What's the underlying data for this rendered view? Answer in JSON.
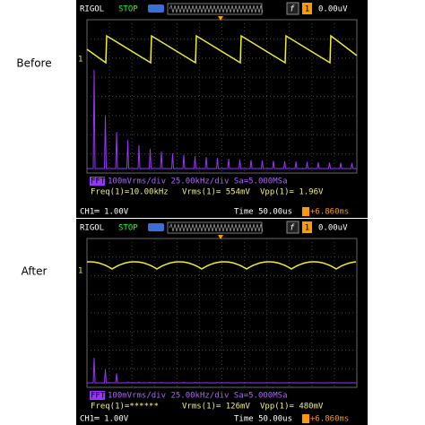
{
  "labels": [
    "Before",
    "After"
  ],
  "screens": [
    {
      "header": {
        "brand": "RIGOL",
        "status": "STOP",
        "channel": "1",
        "trigger_level": "0.00uV"
      },
      "fft": {
        "tag": "FFT",
        "settings": "100mVrms/div 25.00kHz/div Sa=5.000MSa"
      },
      "measurements": [
        "Freq(1)=10.00kHz",
        "Vrms(1)= 554mV",
        "Vpp(1)= 1.96V"
      ],
      "footer": {
        "channel": "CH1═ 1.00V",
        "time": "Time 50.00us",
        "offset": "+6.860ms"
      }
    },
    {
      "header": {
        "brand": "RIGOL",
        "status": "STOP",
        "channel": "1",
        "trigger_level": "0.00uV"
      },
      "fft": {
        "tag": "FFT",
        "settings": "100mVrms/div 25.00kHz/div Sa=5.000MSa"
      },
      "measurements": [
        "Freq(1)=******",
        "Vrms(1)= 126mV",
        "Vpp(1)= 480mV"
      ],
      "footer": {
        "channel": "CH1═ 1.00V",
        "time": "Time 50.00us",
        "offset": "+6.860ms"
      }
    }
  ]
}
